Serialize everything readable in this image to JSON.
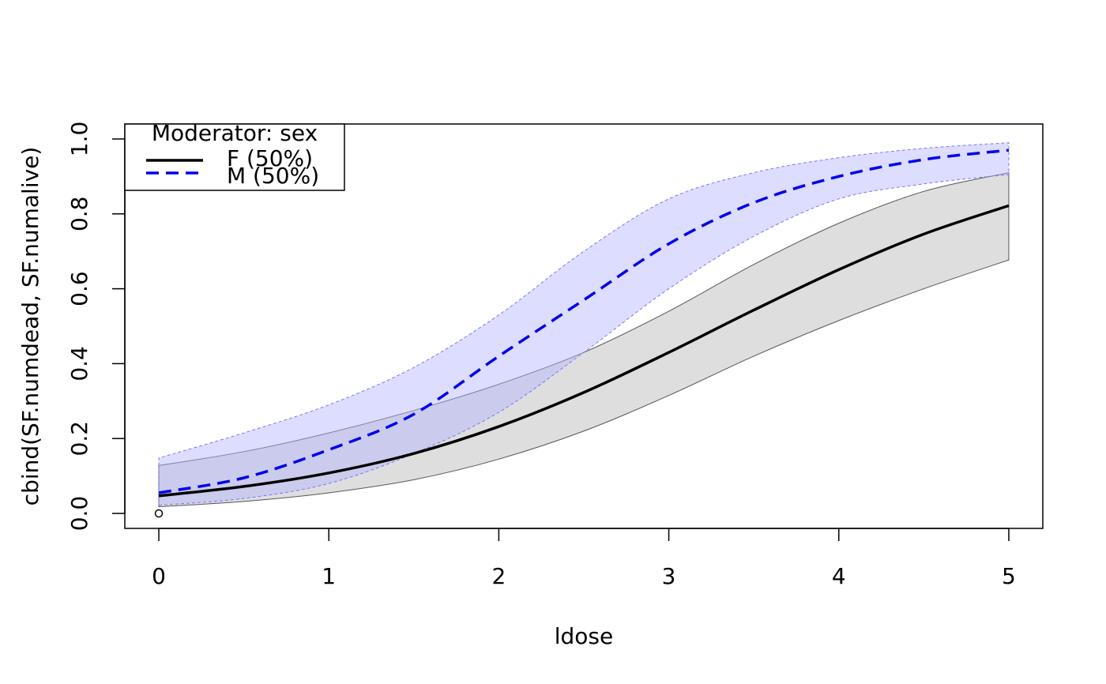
{
  "chart_data": {
    "type": "line",
    "xlabel": "ldose",
    "ylabel": "cbind(SF.numdead, SF.numalive)",
    "xlim": [
      -0.2,
      5.2
    ],
    "ylim": [
      -0.04,
      1.04
    ],
    "x_ticks": [
      "0",
      "1",
      "2",
      "3",
      "4",
      "5"
    ],
    "y_ticks": [
      "0.0",
      "0.2",
      "0.4",
      "0.6",
      "0.8",
      "1.0"
    ],
    "grid": false,
    "legend": {
      "placement": "top-left",
      "title": "Moderator: sex",
      "entries": [
        "F (50%)",
        "M (50%)"
      ]
    },
    "series": [
      {
        "name": "F (50%)",
        "color": "#000000",
        "line_style": "solid",
        "band_color": "#bebebe",
        "x": [
          0,
          0.5,
          1,
          1.5,
          2,
          2.5,
          3,
          3.5,
          4,
          4.5,
          5
        ],
        "y": [
          0.047,
          0.072,
          0.108,
          0.16,
          0.232,
          0.323,
          0.43,
          0.543,
          0.651,
          0.746,
          0.822
        ],
        "lower": [
          0.018,
          0.032,
          0.055,
          0.09,
          0.145,
          0.22,
          0.315,
          0.42,
          0.515,
          0.6,
          0.677
        ],
        "upper": [
          0.128,
          0.165,
          0.215,
          0.275,
          0.345,
          0.43,
          0.54,
          0.665,
          0.775,
          0.86,
          0.91
        ]
      },
      {
        "name": "M (50%)",
        "color": "#0000ee",
        "line_style": "dashed",
        "band_color": "#b4b4ff",
        "x": [
          0,
          0.5,
          1,
          1.5,
          2,
          2.5,
          3,
          3.5,
          4,
          4.5,
          5
        ],
        "y": [
          0.055,
          0.095,
          0.17,
          0.265,
          0.42,
          0.57,
          0.72,
          0.83,
          0.9,
          0.945,
          0.97
        ],
        "lower": [
          0.022,
          0.04,
          0.08,
          0.16,
          0.27,
          0.43,
          0.6,
          0.74,
          0.84,
          0.88,
          0.905
        ],
        "upper": [
          0.148,
          0.215,
          0.29,
          0.39,
          0.53,
          0.7,
          0.84,
          0.91,
          0.95,
          0.975,
          0.99
        ]
      }
    ],
    "points": [
      {
        "x": 0,
        "y": 0.0
      }
    ]
  }
}
